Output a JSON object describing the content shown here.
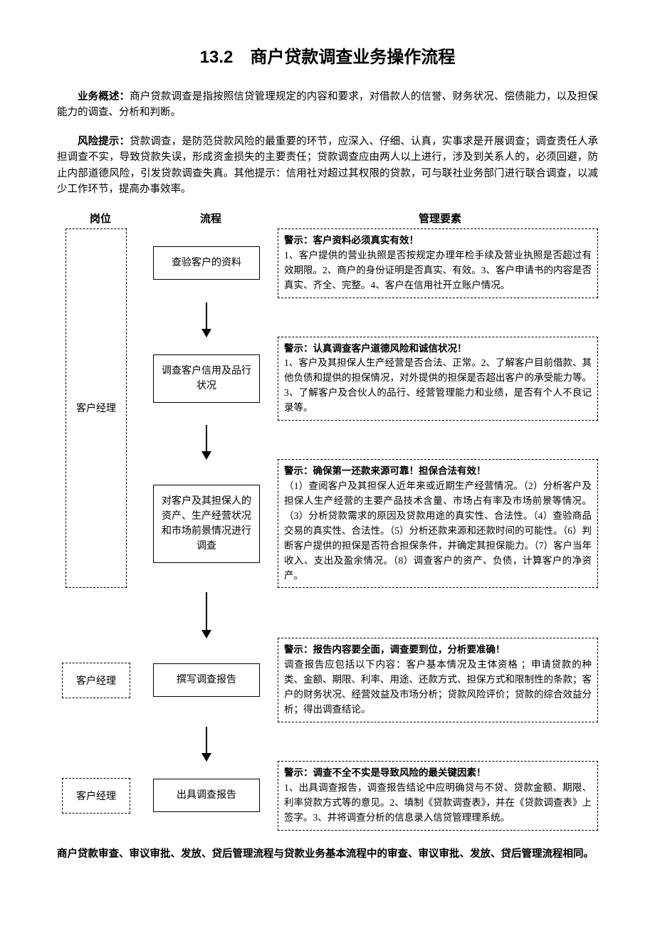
{
  "title": "13.2　商户贷款调查业务操作流程",
  "overview": {
    "lead": "业务概述：",
    "text": "商户贷款调查是指按照信贷管理规定的内容和要求，对借款人的信誉、财务状况、偿债能力，以及担保能力的调查、分析和判断。"
  },
  "risk": {
    "lead": "风险提示：",
    "text": "贷款调查，是防范贷款风险的最重要的环节，应深入、仔细、认真，实事求是开展调查；调查责任人承担调查不实，导致贷款失误，形成资金损失的主要责任；贷款调查应由两人以上进行，涉及到关系人的，必须回避，防止内部道德风险，引发贷款调查失真。其他提示：信用社对超过其权限的贷款，可与联社业务部门进行联合调查，以减少工作环节，提高办事效率。"
  },
  "headers": {
    "role": "岗位",
    "flow": "流程",
    "mgmt": "管理要素"
  },
  "bracket_role": "客户经理",
  "steps": [
    {
      "role": "",
      "flow": "查验客户的资料",
      "mgmt_title": "警示：客户资料必须真实有效！",
      "mgmt_body": "1、客户提供的营业执照是否按规定办理年检手续及营业执照是否超过有效期限。2、商户的身份证明是否真实、有效。3、客户申请书的内容是否真实、齐全、完整。4、客户在信用社开立账户情况。"
    },
    {
      "role": "",
      "flow": "调查客户信用及品行状况",
      "mgmt_title": "警示：认真调查客户道德风险和诚信状况！",
      "mgmt_body": "1、客户及其担保人生产经营是否合法、正常。2、了解客户目前借款、其他负债和提供的担保情况，对外提供的担保是否超出客户的承受能力等。3、了解客户及合伙人的品行、经营管理能力和业绩，是否有个人不良记录等。"
    },
    {
      "role": "",
      "flow": "对客户及其担保人的资产、生产经营状况和市场前景情况进行调查",
      "mgmt_title": "警示：确保第一还款来源可靠！担保合法有效！",
      "mgmt_body": "（1）查阅客户及其担保人近年来或近期生产经营情况。（2）分析客户及担保人生产经营的主要产品技术含量、市场占有率及市场前景等情况。（3）分析贷款需求的原因及贷款用途的真实性、合法性。（4）查验商品交易的真实性、合法性。（5）分析还款来源和还款时间的可能性。（6）判断客户提供的担保是否符合担保条件，并确定其担保能力。（7）客户当年收入、支出及盈余情况。（8）调查客户的资产、负债，计算客户的净资产。"
    },
    {
      "role": "客户经理",
      "flow": "撰写调查报告",
      "mgmt_title": "警示：报告内容要全面，调查要到位，分析要准确！",
      "mgmt_body": "调查报告应包括以下内容：客户基本情况及主体资格 ；申请贷款的种类、金额、期限、利率、用途、还款方式、担保方式和限制性的条款；客户的财务状况、经营效益及市场分析；贷款风险评价；贷款的综合效益分析；得出调查结论。"
    },
    {
      "role": "客户经理",
      "flow": "出具调查报告",
      "mgmt_title": "警示：调查不全不实是导致风险的最关键因素！",
      "mgmt_body": "1、出具调查报告，调查报告结论中应明确贷与不贷、贷款金额、期限、利率贷款方式等的意见。2、填制《贷款调查表》，并在《贷款调查表》上签字。3、并将调查分析的信息录入信贷管理理系统。"
    }
  ],
  "bottom_note": "商户贷款审查、审议审批、发放、贷后管理流程与贷款业务基本流程中的审查、审议审批、发放、贷后管理流程相同。"
}
